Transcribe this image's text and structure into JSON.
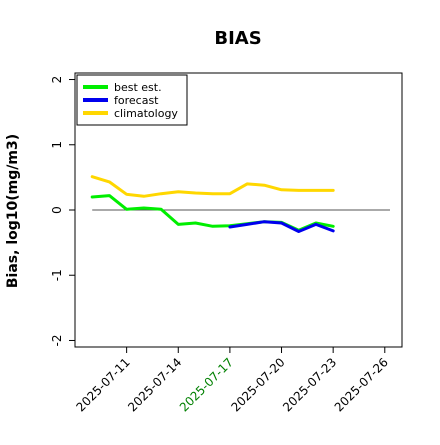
{
  "chart_data": {
    "type": "line",
    "title": "BIAS",
    "ylabel": "Bias, log10(mg/m3)",
    "xlabel": "",
    "ylim": [
      -2.1,
      2.1
    ],
    "yticks": [
      -2,
      -1,
      0,
      1,
      2
    ],
    "ytick_labels": [
      "-2",
      "-1",
      "0",
      "1",
      "2"
    ],
    "xlim": [
      "2025-07-08",
      "2025-07-27"
    ],
    "xticks": [
      "2025-07-11",
      "2025-07-14",
      "2025-07-17",
      "2025-07-20",
      "2025-07-23",
      "2025-07-26"
    ],
    "xtick_labels": [
      "2025-07-11",
      "2025-07-14",
      "2025-07-17",
      "2025-07-20",
      "2025-07-23",
      "2025-07-26"
    ],
    "xtick_colors": [
      "#000000",
      "#000000",
      "#008000",
      "#000000",
      "#000000",
      "#000000"
    ],
    "zero_line": true,
    "grid": false,
    "legend_position": "top-left",
    "series": [
      {
        "name": "best est.",
        "color": "#00ee00",
        "x": [
          "2025-07-09",
          "2025-07-10",
          "2025-07-11",
          "2025-07-12",
          "2025-07-13",
          "2025-07-14",
          "2025-07-15",
          "2025-07-16",
          "2025-07-17",
          "2025-07-18",
          "2025-07-19",
          "2025-07-20",
          "2025-07-21",
          "2025-07-22",
          "2025-07-23"
        ],
        "values": [
          0.2,
          0.22,
          0.01,
          0.03,
          0.01,
          -0.22,
          -0.2,
          -0.25,
          -0.24,
          -0.21,
          -0.18,
          -0.19,
          -0.31,
          -0.2,
          -0.25
        ]
      },
      {
        "name": "forecast",
        "color": "#0000ee",
        "x": [
          "2025-07-17",
          "2025-07-18",
          "2025-07-19",
          "2025-07-20",
          "2025-07-21",
          "2025-07-22",
          "2025-07-23"
        ],
        "values": [
          -0.26,
          -0.22,
          -0.18,
          -0.2,
          -0.33,
          -0.22,
          -0.32
        ]
      },
      {
        "name": "climatology",
        "color": "#ffd700",
        "x": [
          "2025-07-09",
          "2025-07-10",
          "2025-07-11",
          "2025-07-12",
          "2025-07-13",
          "2025-07-14",
          "2025-07-15",
          "2025-07-16",
          "2025-07-17",
          "2025-07-18",
          "2025-07-19",
          "2025-07-20",
          "2025-07-21",
          "2025-07-22",
          "2025-07-23"
        ],
        "values": [
          0.51,
          0.43,
          0.24,
          0.21,
          0.25,
          0.28,
          0.26,
          0.25,
          0.25,
          0.4,
          0.38,
          0.31,
          0.3,
          0.3,
          0.3
        ]
      }
    ]
  }
}
